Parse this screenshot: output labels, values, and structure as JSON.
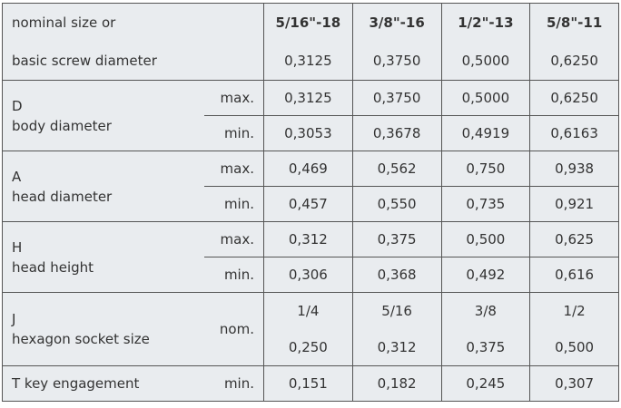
{
  "header": {
    "label": [
      "nominal size or",
      "basic screw diameter"
    ],
    "columns": [
      {
        "size": "5/16\"-18",
        "diameter": "0,3125"
      },
      {
        "size": "3/8\"-16",
        "diameter": "0,3750"
      },
      {
        "size": "1/2\"-13",
        "diameter": "0,5000"
      },
      {
        "size": "5/8\"-11",
        "diameter": "0,6250"
      }
    ]
  },
  "groups": [
    {
      "letter": "D",
      "label": "body diameter",
      "rows": [
        {
          "qualifier": "max.",
          "values": [
            "0,3125",
            "0,3750",
            "0,5000",
            "0,6250"
          ]
        },
        {
          "qualifier": "min.",
          "values": [
            "0,3053",
            "0,3678",
            "0,4919",
            "0,6163"
          ]
        }
      ]
    },
    {
      "letter": "A",
      "label": "head diameter",
      "rows": [
        {
          "qualifier": "max.",
          "values": [
            "0,469",
            "0,562",
            "0,750",
            "0,938"
          ]
        },
        {
          "qualifier": "min.",
          "values": [
            "0,457",
            "0,550",
            "0,735",
            "0,921"
          ]
        }
      ]
    },
    {
      "letter": "H",
      "label": "head height",
      "rows": [
        {
          "qualifier": "max.",
          "values": [
            "0,312",
            "0,375",
            "0,500",
            "0,625"
          ]
        },
        {
          "qualifier": "min.",
          "values": [
            "0,306",
            "0,368",
            "0,492",
            "0,616"
          ]
        }
      ]
    }
  ],
  "socket": {
    "letter": "J",
    "label": "hexagon socket size",
    "qualifier": "nom.",
    "fraction": [
      "1/4",
      "5/16",
      "3/8",
      "1/2"
    ],
    "decimal": [
      "0,250",
      "0,312",
      "0,375",
      "0,500"
    ]
  },
  "key": {
    "label": "T key engagement",
    "qualifier": "min.",
    "values": [
      "0,151",
      "0,182",
      "0,245",
      "0,307"
    ]
  }
}
